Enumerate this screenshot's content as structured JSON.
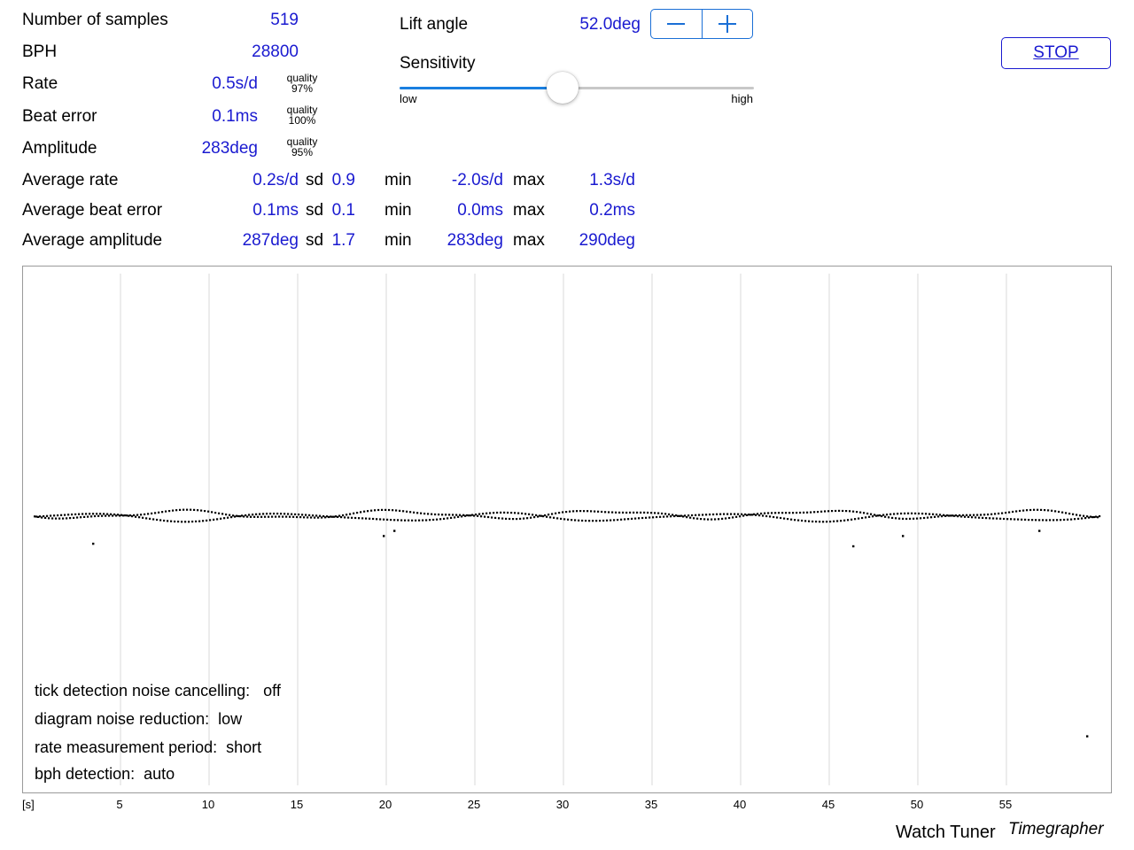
{
  "stats": {
    "samples": {
      "label": "Number of samples",
      "value": "519"
    },
    "bph": {
      "label": "BPH",
      "value": "28800"
    },
    "rate": {
      "label": "Rate",
      "value": "0.5s/d",
      "quality_label": "quality",
      "quality": "97%"
    },
    "beat_error": {
      "label": "Beat error",
      "value": "0.1ms",
      "quality_label": "quality",
      "quality": "100%"
    },
    "amplitude": {
      "label": "Amplitude",
      "value": "283deg",
      "quality_label": "quality",
      "quality": "95%"
    }
  },
  "averages": {
    "rows": [
      {
        "label": "Average rate",
        "value": "0.2s/d",
        "sd_label": "sd",
        "sd": "0.9",
        "min_label": "min",
        "min": "-2.0s/d",
        "max_label": "max",
        "max": "1.3s/d"
      },
      {
        "label": "Average beat error",
        "value": "0.1ms",
        "sd_label": "sd",
        "sd": "0.1",
        "min_label": "min",
        "min": "0.0ms",
        "max_label": "max",
        "max": "0.2ms"
      },
      {
        "label": "Average amplitude",
        "value": "287deg",
        "sd_label": "sd",
        "sd": "1.7",
        "min_label": "min",
        "min": "283deg",
        "max_label": "max",
        "max": "290deg"
      }
    ]
  },
  "lift_angle": {
    "label": "Lift angle",
    "value": "52.0deg",
    "decrement_icon": "minus-icon",
    "increment_icon": "plus-icon"
  },
  "sensitivity": {
    "label": "Sensitivity",
    "min_label": "low",
    "max_label": "high",
    "level": 0.46
  },
  "controls": {
    "stop_label": "STOP"
  },
  "settings": [
    {
      "label": "tick detection noise cancelling:",
      "value": "off"
    },
    {
      "label": "diagram noise reduction:",
      "value": "low"
    },
    {
      "label": "rate measurement period:",
      "value": "short"
    },
    {
      "label": "bph detection:",
      "value": "auto"
    }
  ],
  "colors": {
    "value_blue": "#1a1ad0",
    "control_blue": "#1a6fd6",
    "slider_fill": "#1a7fe0"
  },
  "chart_data": {
    "type": "scatter",
    "xlabel": "[s]",
    "xlim": [
      0,
      60
    ],
    "ticks": [
      5,
      10,
      15,
      20,
      25,
      30,
      35,
      40,
      45,
      50,
      55
    ],
    "tick_labels": [
      "5",
      "10",
      "15",
      "20",
      "25",
      "30",
      "35",
      "40",
      "45",
      "50",
      "55"
    ],
    "grid": true,
    "outliers": [
      [
        3.4,
        -11
      ],
      [
        19.8,
        -8
      ],
      [
        20.4,
        -6
      ],
      [
        46.3,
        -12
      ],
      [
        49.1,
        -8
      ],
      [
        56.8,
        -6
      ],
      [
        59.5,
        -86
      ]
    ]
  },
  "branding": {
    "app": "Watch Tuner",
    "subtitle": "Timegrapher"
  }
}
